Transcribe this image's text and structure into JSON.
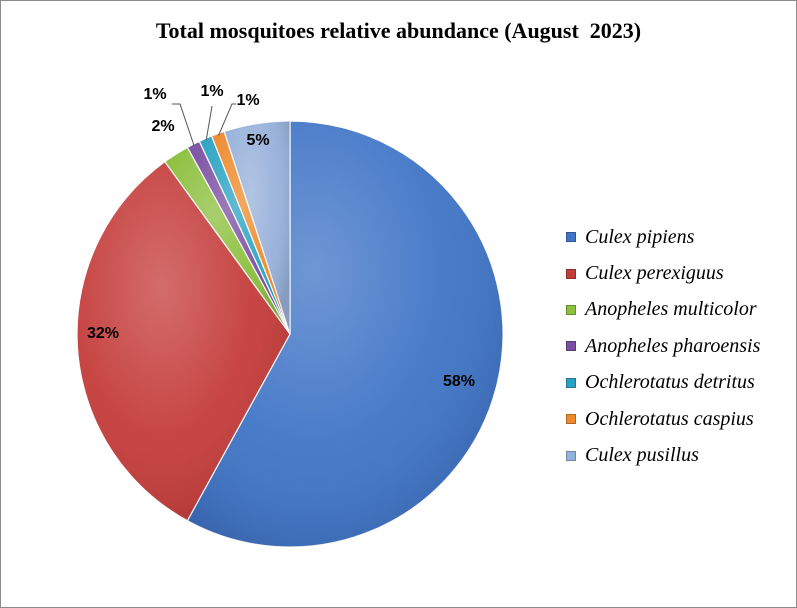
{
  "chart_data": {
    "type": "pie",
    "title": "Total mosquitoes relative abundance (August  2023)",
    "legend_position": "right",
    "slices": [
      {
        "name": "Culex pipiens",
        "value": 58,
        "label": "58%",
        "color": "#3f74c6"
      },
      {
        "name": "Culex perexiguus",
        "value": 32,
        "label": "32%",
        "color": "#c43c3a"
      },
      {
        "name": "Anopheles multicolor",
        "value": 2,
        "label": "2%",
        "color": "#8bbf3c"
      },
      {
        "name": "Anopheles pharoensis",
        "value": 1,
        "label": "1%",
        "color": "#7a4fa1"
      },
      {
        "name": "Ochlerotatus detritus",
        "value": 1,
        "label": "1%",
        "color": "#2aa3c2"
      },
      {
        "name": "Ochlerotatus caspius",
        "value": 1,
        "label": "1%",
        "color": "#ee8a2c"
      },
      {
        "name": "Culex pusillus",
        "value": 5,
        "label": "5%",
        "color": "#97b1da"
      }
    ]
  }
}
